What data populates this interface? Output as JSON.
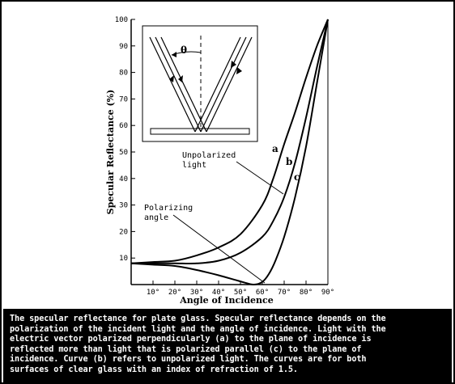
{
  "chart_data": {
    "type": "line",
    "xlabel": "Angle of Incidence",
    "ylabel": "Specular Reflectance (%)",
    "xlim": [
      0,
      90
    ],
    "ylim": [
      0,
      100
    ],
    "x_tick_labels": [
      "10°",
      "20°",
      "30°",
      "40°",
      "50°",
      "60°",
      "70°",
      "80°",
      "90°"
    ],
    "y_tick_labels": [
      "10",
      "20",
      "30",
      "40",
      "50",
      "60",
      "70",
      "80",
      "90",
      "100"
    ],
    "series": [
      {
        "name": "a",
        "x": [
          0,
          10,
          20,
          30,
          40,
          50,
          60,
          65,
          70,
          75,
          80,
          85,
          90
        ],
        "y": [
          8,
          8.5,
          9,
          11,
          14,
          19,
          30,
          40,
          53,
          65,
          78,
          90,
          100
        ]
      },
      {
        "name": "b",
        "x": [
          0,
          10,
          20,
          30,
          40,
          50,
          60,
          65,
          70,
          75,
          80,
          85,
          90
        ],
        "y": [
          8,
          8,
          8,
          8,
          9,
          12,
          18,
          24,
          33,
          46,
          63,
          82,
          100
        ]
      },
      {
        "name": "c",
        "x": [
          0,
          10,
          20,
          30,
          40,
          50,
          56,
          60,
          63,
          66,
          70,
          75,
          80,
          85,
          90
        ],
        "y": [
          8,
          7.5,
          7,
          5.5,
          3.5,
          1.2,
          0,
          1,
          4,
          9,
          18,
          33,
          52,
          76,
          100
        ]
      }
    ],
    "annotations": [
      {
        "text": "Unpolarized",
        "line2": "light"
      },
      {
        "text": "Polarizing",
        "line2": "angle"
      },
      {
        "text": "θ"
      }
    ]
  },
  "caption": [
    "The specular reflectance for plate glass. Specular reflectance depends on the",
    "polarization of the incident light and the angle of incidence. Light with the",
    "electric vector polarized perpendicularly (a) to the plane of incidence is",
    "reflected more than light that is polarized parallel (c) to the plane of",
    "incidence. Curve (b) refers to unpolarized light. The curves are for both",
    "surfaces of clear glass with an index of refraction of 1.5."
  ],
  "colors": {
    "background": "#ffffff",
    "ink": "#000000",
    "caption_bg": "#000000",
    "caption_text": "#ffffff"
  }
}
